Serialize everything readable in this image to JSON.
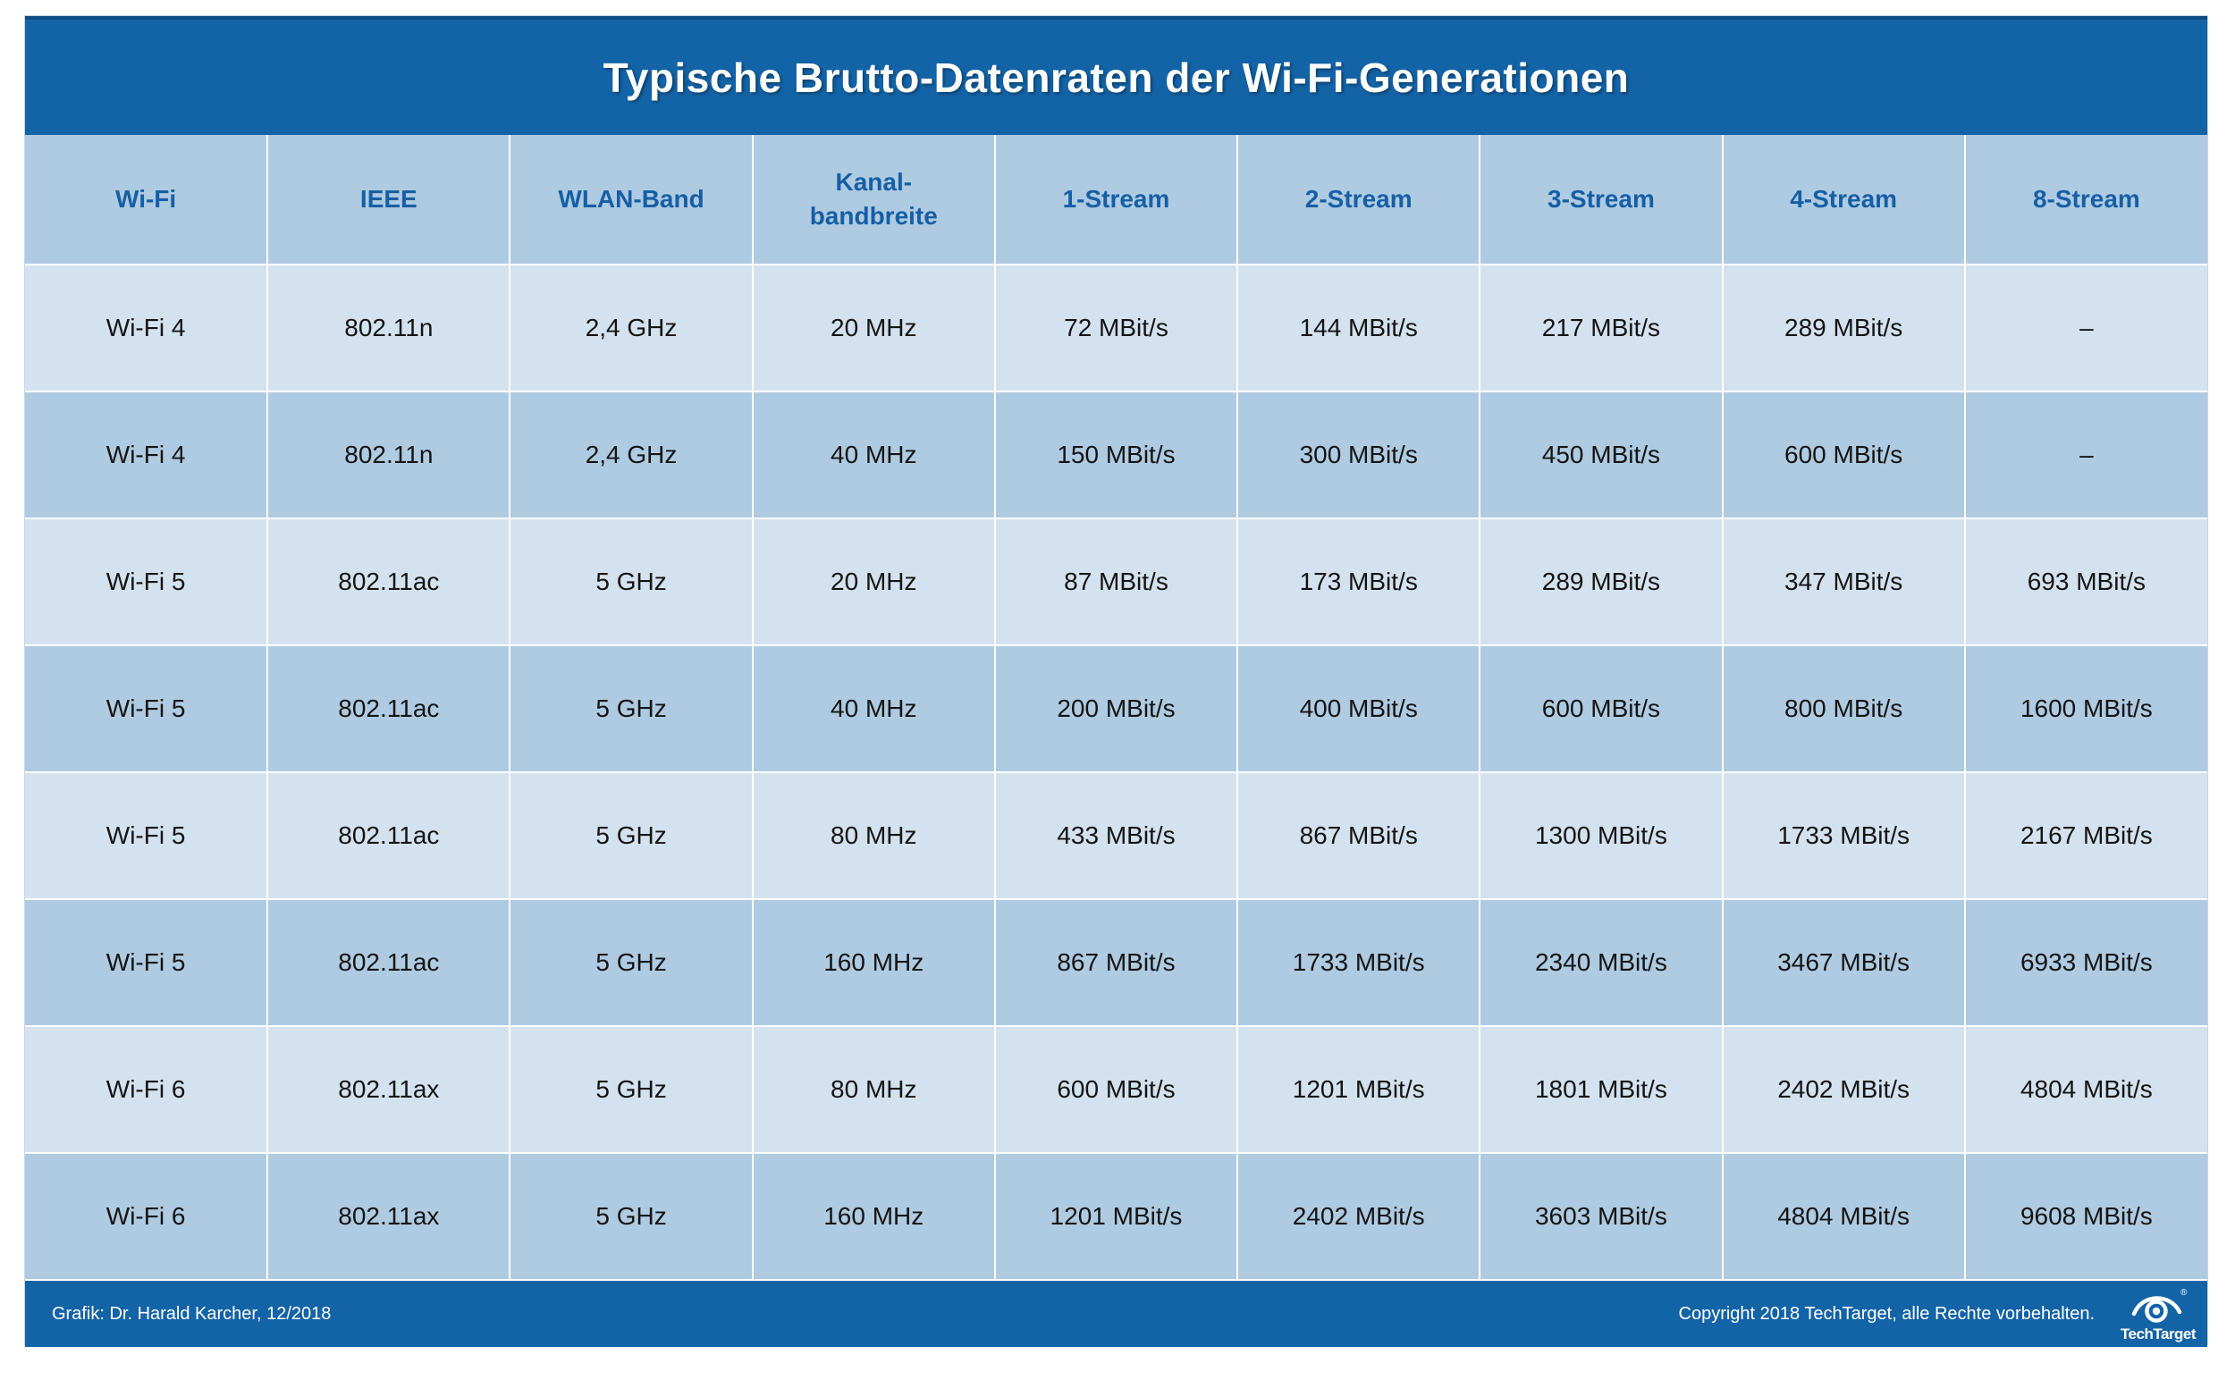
{
  "chart_data": {
    "type": "table",
    "title": "Typische Brutto-Datenraten der Wi-Fi-Generationen",
    "columns": [
      "Wi-Fi",
      "IEEE",
      "WLAN-Band",
      "Kanal-\nbandbreite",
      "1-Stream",
      "2-Stream",
      "3-Stream",
      "4-Stream",
      "8-Stream"
    ],
    "rows": [
      [
        "Wi-Fi 4",
        "802.11n",
        "2,4 GHz",
        "20 MHz",
        "72 MBit/s",
        "144 MBit/s",
        "217 MBit/s",
        "289 MBit/s",
        "–"
      ],
      [
        "Wi-Fi 4",
        "802.11n",
        "2,4 GHz",
        "40 MHz",
        "150 MBit/s",
        "300 MBit/s",
        "450 MBit/s",
        "600 MBit/s",
        "–"
      ],
      [
        "Wi-Fi 5",
        "802.11ac",
        "5 GHz",
        "20 MHz",
        "87 MBit/s",
        "173 MBit/s",
        "289 MBit/s",
        "347 MBit/s",
        "693 MBit/s"
      ],
      [
        "Wi-Fi 5",
        "802.11ac",
        "5 GHz",
        "40 MHz",
        "200 MBit/s",
        "400 MBit/s",
        "600 MBit/s",
        "800 MBit/s",
        "1600 MBit/s"
      ],
      [
        "Wi-Fi 5",
        "802.11ac",
        "5 GHz",
        "80 MHz",
        "433 MBit/s",
        "867 MBit/s",
        "1300 MBit/s",
        "1733 MBit/s",
        "2167 MBit/s"
      ],
      [
        "Wi-Fi 5",
        "802.11ac",
        "5 GHz",
        "160 MHz",
        "867 MBit/s",
        "1733 MBit/s",
        "2340 MBit/s",
        "3467 MBit/s",
        "6933 MBit/s"
      ],
      [
        "Wi-Fi 6",
        "802.11ax",
        "5 GHz",
        "80 MHz",
        "600 MBit/s",
        "1201 MBit/s",
        "1801 MBit/s",
        "2402 MBit/s",
        "4804 MBit/s"
      ],
      [
        "Wi-Fi 6",
        "802.11ax",
        "5 GHz",
        "160 MHz",
        "1201 MBit/s",
        "2402 MBit/s",
        "3603 MBit/s",
        "4804 MBit/s",
        "9608 MBit/s"
      ]
    ],
    "layout": {
      "grid": "white 2px cell separators",
      "row_striping": "light/dark alternating"
    }
  },
  "footer": {
    "credit": "Grafik: Dr. Harald Karcher, 12/2018",
    "copyright": "Copyright 2018 TechTarget, alle Rechte vorbehalten.",
    "logo_text": "TechTarget",
    "logo_icon": "techtarget-eye-icon",
    "registered_mark": "®"
  },
  "colors": {
    "bar_bg": "#1363a7",
    "bar_top_edge": "#0b4d84",
    "header_row_bg": "#aecbe2",
    "row_light_bg": "#d4e2ef",
    "row_dark_bg": "#aecbe2",
    "header_text": "#175fa4",
    "body_text": "#141414",
    "title_text": "#ffffff"
  }
}
